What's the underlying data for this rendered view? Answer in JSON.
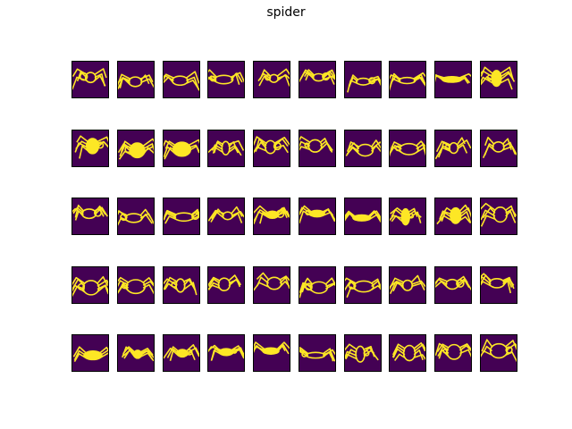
{
  "title": "spider",
  "grid": {
    "rows": 5,
    "cols": 10
  },
  "colors": {
    "background": "#440154",
    "stroke": "#fde725",
    "edge": "#2a9d8f",
    "frame": "#000000"
  },
  "cells": [
    {
      "subject": "spider"
    },
    {
      "subject": "spider"
    },
    {
      "subject": "spider"
    },
    {
      "subject": "spider"
    },
    {
      "subject": "spider"
    },
    {
      "subject": "spider"
    },
    {
      "subject": "spider"
    },
    {
      "subject": "spider"
    },
    {
      "subject": "spider"
    },
    {
      "subject": "spider"
    },
    {
      "subject": "spider"
    },
    {
      "subject": "spider"
    },
    {
      "subject": "spider"
    },
    {
      "subject": "spider"
    },
    {
      "subject": "spider"
    },
    {
      "subject": "spider"
    },
    {
      "subject": "spider"
    },
    {
      "subject": "spider"
    },
    {
      "subject": "spider"
    },
    {
      "subject": "spider"
    },
    {
      "subject": "spider"
    },
    {
      "subject": "spider"
    },
    {
      "subject": "spider"
    },
    {
      "subject": "spider"
    },
    {
      "subject": "spider"
    },
    {
      "subject": "spider"
    },
    {
      "subject": "spider"
    },
    {
      "subject": "spider"
    },
    {
      "subject": "spider"
    },
    {
      "subject": "spider"
    },
    {
      "subject": "spider"
    },
    {
      "subject": "spider"
    },
    {
      "subject": "spider"
    },
    {
      "subject": "spider"
    },
    {
      "subject": "spider"
    },
    {
      "subject": "spider"
    },
    {
      "subject": "spider"
    },
    {
      "subject": "spider"
    },
    {
      "subject": "spider"
    },
    {
      "subject": "spider"
    },
    {
      "subject": "spider"
    },
    {
      "subject": "spider"
    },
    {
      "subject": "spider"
    },
    {
      "subject": "spider"
    },
    {
      "subject": "spider"
    },
    {
      "subject": "spider"
    },
    {
      "subject": "spider"
    },
    {
      "subject": "spider"
    },
    {
      "subject": "spider"
    },
    {
      "subject": "spider"
    }
  ]
}
